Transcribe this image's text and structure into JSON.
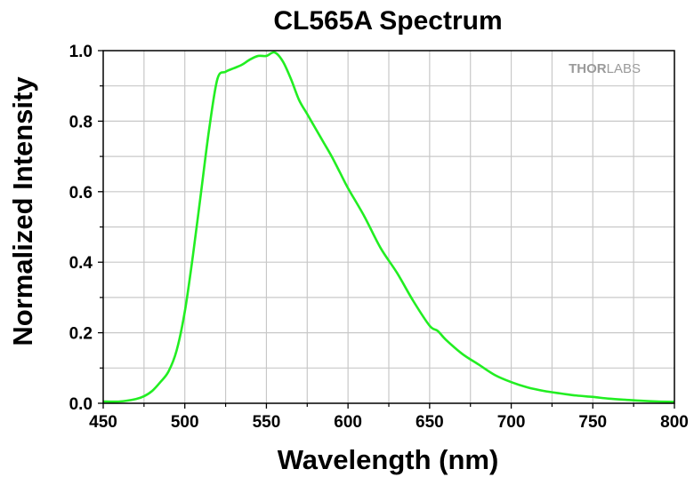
{
  "chart_data": {
    "type": "line",
    "title": "CL565A Spectrum",
    "xlabel": "Wavelength (nm)",
    "ylabel": "Normalized Intensity",
    "xlim": [
      450,
      800
    ],
    "ylim": [
      0.0,
      1.0
    ],
    "x_ticks": [
      "450",
      "500",
      "550",
      "600",
      "650",
      "700",
      "750",
      "800"
    ],
    "y_ticks": [
      "0.0",
      "0.2",
      "0.4",
      "0.6",
      "0.8",
      "1.0"
    ],
    "grid": true,
    "legend": "none",
    "watermark": {
      "bold": "THOR",
      "light": "LABS"
    },
    "series": [
      {
        "color": "#22ee22",
        "x": [
          450,
          460,
          470,
          475,
          480,
          485,
          490,
          495,
          500,
          505,
          510,
          515,
          520,
          525,
          530,
          535,
          540,
          545,
          550,
          555,
          560,
          565,
          570,
          575,
          580,
          585,
          590,
          595,
          600,
          610,
          620,
          630,
          640,
          650,
          655,
          660,
          670,
          680,
          690,
          700,
          710,
          720,
          730,
          740,
          750,
          760,
          770,
          780,
          790,
          800
        ],
        "y": [
          0.005,
          0.005,
          0.012,
          0.02,
          0.035,
          0.06,
          0.09,
          0.15,
          0.26,
          0.42,
          0.6,
          0.78,
          0.92,
          0.94,
          0.95,
          0.96,
          0.975,
          0.985,
          0.985,
          0.995,
          0.97,
          0.92,
          0.86,
          0.82,
          0.78,
          0.74,
          0.7,
          0.655,
          0.61,
          0.53,
          0.44,
          0.37,
          0.29,
          0.22,
          0.205,
          0.18,
          0.14,
          0.11,
          0.08,
          0.06,
          0.045,
          0.035,
          0.028,
          0.022,
          0.018,
          0.013,
          0.01,
          0.007,
          0.005,
          0.004
        ]
      }
    ]
  }
}
